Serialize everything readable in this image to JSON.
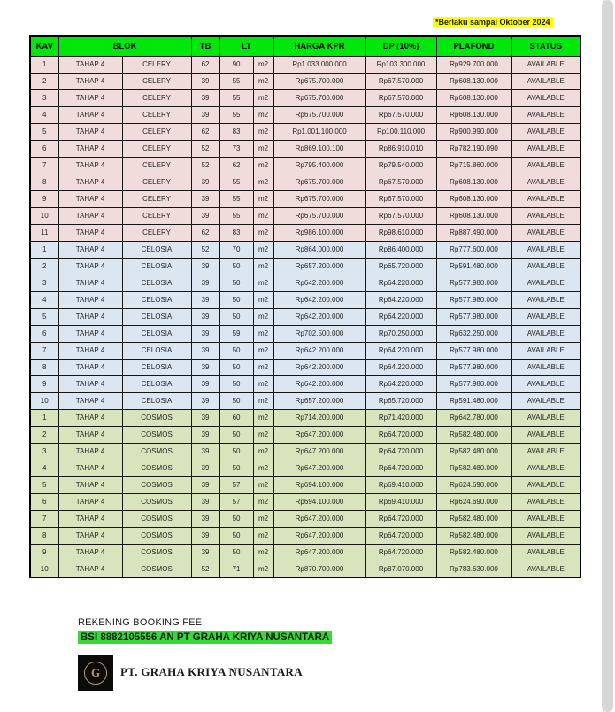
{
  "note": "*Berlaku sampai Oktober 2024",
  "colors": {
    "header_green": "#00e80b",
    "highlight_yellow": "#ffff00",
    "highlight_green": "#38d838",
    "strip_gray": "#d7d7d7",
    "logo_gold": "#b59a5e",
    "celery_pink": "#f0dcdb",
    "celosia_blue": "#dce6f1",
    "cosmos_green": "#d7e4bc"
  },
  "table": {
    "headers": {
      "kav": "KAV",
      "blok": "BLOK",
      "tb": "TB",
      "lt": "LT",
      "harga": "HARGA KPR",
      "dp": "DP (10%)",
      "plafond": "PLAFOND",
      "status": "STATUS"
    },
    "tahap": "TAHAP 4",
    "unit": "m2",
    "sections": [
      {
        "name": "CELERY",
        "row_color": "#f0dcdb",
        "rows": [
          {
            "kav": "1",
            "tb": "62",
            "lt": "90",
            "harga": "Rp1.033.000.000",
            "dp": "Rp103.300.000",
            "plafond": "Rp929.700.000",
            "status": "AVAILABLE"
          },
          {
            "kav": "2",
            "tb": "39",
            "lt": "55",
            "harga": "Rp675.700.000",
            "dp": "Rp67.570.000",
            "plafond": "Rp608.130.000",
            "status": "AVAILABLE"
          },
          {
            "kav": "3",
            "tb": "39",
            "lt": "55",
            "harga": "Rp675.700.000",
            "dp": "Rp67.570.000",
            "plafond": "Rp608.130.000",
            "status": "AVAILABLE"
          },
          {
            "kav": "4",
            "tb": "39",
            "lt": "55",
            "harga": "Rp675.700.000",
            "dp": "Rp67.570.000",
            "plafond": "Rp608.130.000",
            "status": "AVAILABLE"
          },
          {
            "kav": "5",
            "tb": "62",
            "lt": "83",
            "harga": "Rp1.001.100.000",
            "dp": "Rp100.110.000",
            "plafond": "Rp900.990.000",
            "status": "AVAILABLE"
          },
          {
            "kav": "6",
            "tb": "52",
            "lt": "73",
            "harga": "Rp869.100.100",
            "dp": "Rp86.910.010",
            "plafond": "Rp782.190.090",
            "status": "AVAILABLE"
          },
          {
            "kav": "7",
            "tb": "52",
            "lt": "62",
            "harga": "Rp795.400.000",
            "dp": "Rp79.540.000",
            "plafond": "Rp715.860.000",
            "status": "AVAILABLE"
          },
          {
            "kav": "8",
            "tb": "39",
            "lt": "55",
            "harga": "Rp675.700.000",
            "dp": "Rp67.570.000",
            "plafond": "Rp608.130.000",
            "status": "AVAILABLE"
          },
          {
            "kav": "9",
            "tb": "39",
            "lt": "55",
            "harga": "Rp675.700.000",
            "dp": "Rp67.570.000",
            "plafond": "Rp608.130.000",
            "status": "AVAILABLE"
          },
          {
            "kav": "10",
            "tb": "39",
            "lt": "55",
            "harga": "Rp675.700.000",
            "dp": "Rp67.570.000",
            "plafond": "Rp608.130.000",
            "status": "AVAILABLE"
          },
          {
            "kav": "11",
            "tb": "62",
            "lt": "83",
            "harga": "Rp986.100.000",
            "dp": "Rp98.610.000",
            "plafond": "Rp887.490.000",
            "status": "AVAILABLE"
          }
        ]
      },
      {
        "name": "CELOSIA",
        "row_color": "#dce6f1",
        "rows": [
          {
            "kav": "1",
            "tb": "52",
            "lt": "70",
            "harga": "Rp864.000.000",
            "dp": "Rp86.400.000",
            "plafond": "Rp777.600.000",
            "status": "AVAILABLE"
          },
          {
            "kav": "2",
            "tb": "39",
            "lt": "50",
            "harga": "Rp657.200.000",
            "dp": "Rp65.720.000",
            "plafond": "Rp591.480.000",
            "status": "AVAILABLE"
          },
          {
            "kav": "3",
            "tb": "39",
            "lt": "50",
            "harga": "Rp642.200.000",
            "dp": "Rp64.220.000",
            "plafond": "Rp577.980.000",
            "status": "AVAILABLE"
          },
          {
            "kav": "4",
            "tb": "39",
            "lt": "50",
            "harga": "Rp642.200.000",
            "dp": "Rp64.220.000",
            "plafond": "Rp577.980.000",
            "status": "AVAILABLE"
          },
          {
            "kav": "5",
            "tb": "39",
            "lt": "50",
            "harga": "Rp642.200.000",
            "dp": "Rp64.220.000",
            "plafond": "Rp577.980.000",
            "status": "AVAILABLE"
          },
          {
            "kav": "6",
            "tb": "39",
            "lt": "59",
            "harga": "Rp702.500.000",
            "dp": "Rp70.250.000",
            "plafond": "Rp632.250.000",
            "status": "AVAILABLE"
          },
          {
            "kav": "7",
            "tb": "39",
            "lt": "50",
            "harga": "Rp642.200.000",
            "dp": "Rp64.220.000",
            "plafond": "Rp577.980.000",
            "status": "AVAILABLE"
          },
          {
            "kav": "8",
            "tb": "39",
            "lt": "50",
            "harga": "Rp642.200.000",
            "dp": "Rp64.220.000",
            "plafond": "Rp577.980.000",
            "status": "AVAILABLE"
          },
          {
            "kav": "9",
            "tb": "39",
            "lt": "50",
            "harga": "Rp642.200.000",
            "dp": "Rp64.220.000",
            "plafond": "Rp577.980.000",
            "status": "AVAILABLE"
          },
          {
            "kav": "10",
            "tb": "39",
            "lt": "50",
            "harga": "Rp657.200.000",
            "dp": "Rp65.720.000",
            "plafond": "Rp591.480.000",
            "status": "AVAILABLE"
          }
        ]
      },
      {
        "name": "COSMOS",
        "row_color": "#d7e4bc",
        "rows": [
          {
            "kav": "1",
            "tb": "39",
            "lt": "60",
            "harga": "Rp714.200.000",
            "dp": "Rp71.420.000",
            "plafond": "Rp642.780.000",
            "status": "AVAILABLE"
          },
          {
            "kav": "2",
            "tb": "39",
            "lt": "50",
            "harga": "Rp647.200.000",
            "dp": "Rp64.720.000",
            "plafond": "Rp582.480.000",
            "status": "AVAILABLE"
          },
          {
            "kav": "3",
            "tb": "39",
            "lt": "50",
            "harga": "Rp647.200.000",
            "dp": "Rp64.720.000",
            "plafond": "Rp582.480.000",
            "status": "AVAILABLE"
          },
          {
            "kav": "4",
            "tb": "39",
            "lt": "50",
            "harga": "Rp647.200.000",
            "dp": "Rp64.720.000",
            "plafond": "Rp582.480.000",
            "status": "AVAILABLE"
          },
          {
            "kav": "5",
            "tb": "39",
            "lt": "57",
            "harga": "Rp694.100.000",
            "dp": "Rp69.410.000",
            "plafond": "Rp624.690.000",
            "status": "AVAILABLE"
          },
          {
            "kav": "6",
            "tb": "39",
            "lt": "57",
            "harga": "Rp694.100.000",
            "dp": "Rp69.410.000",
            "plafond": "Rp624.690.000",
            "status": "AVAILABLE"
          },
          {
            "kav": "7",
            "tb": "39",
            "lt": "50",
            "harga": "Rp647.200.000",
            "dp": "Rp64.720.000",
            "plafond": "Rp582.480.000",
            "status": "AVAILABLE"
          },
          {
            "kav": "8",
            "tb": "39",
            "lt": "50",
            "harga": "Rp647.200.000",
            "dp": "Rp64.720.000",
            "plafond": "Rp582.480.000",
            "status": "AVAILABLE"
          },
          {
            "kav": "9",
            "tb": "39",
            "lt": "50",
            "harga": "Rp647.200.000",
            "dp": "Rp64.720.000",
            "plafond": "Rp582.480.000",
            "status": "AVAILABLE"
          },
          {
            "kav": "10",
            "tb": "52",
            "lt": "71",
            "harga": "Rp870.700.000",
            "dp": "Rp87.070.000",
            "plafond": "Rp783.630.000",
            "status": "AVAILABLE"
          }
        ]
      }
    ]
  },
  "footer": {
    "rekening_label": "REKENING BOOKING FEE",
    "rekening_value": "BSI 8882105556 AN PT GRAHA KRIYA NUSANTARA",
    "company": "PT. GRAHA KRIYA NUSANTARA",
    "logo_monogram": "G"
  }
}
